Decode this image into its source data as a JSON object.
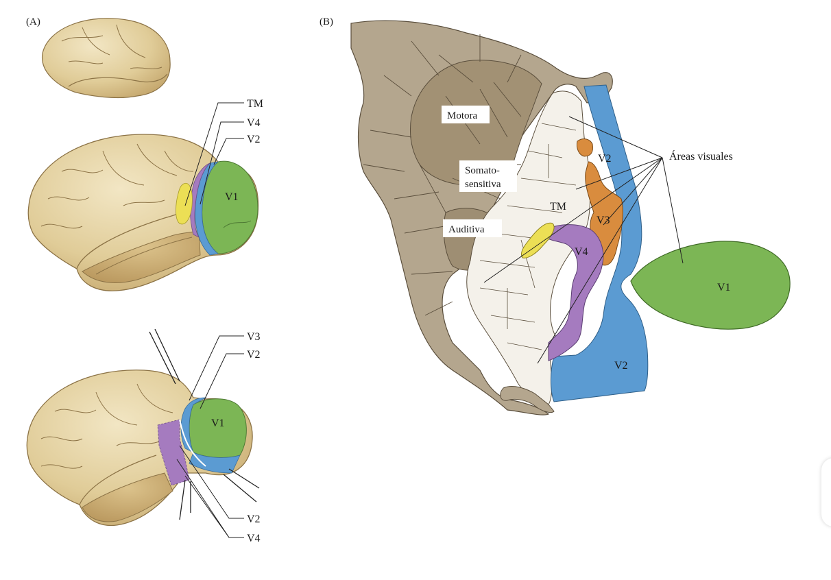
{
  "figure": {
    "panel_a_label": "(A)",
    "panel_b_label": "(B)"
  },
  "panel_a": {
    "lateral_labels": {
      "tm": "TM",
      "v4": "V4",
      "v2": "V2",
      "v1": "V1"
    },
    "posterior_labels": {
      "v3": "V3",
      "v2_top": "V2",
      "v1": "V1",
      "v2_bottom": "V2",
      "v4_bottom": "V4"
    }
  },
  "panel_b": {
    "motora": "Motora",
    "somato_line1": "Somato-",
    "somato_line2": "sensitiva",
    "auditiva": "Auditiva",
    "tm": "TM",
    "v2_top": "V2",
    "v3": "V3",
    "v4": "V4",
    "v2_bottom": "V2",
    "v1": "V1",
    "areas_visuales": "Áreas visuales"
  },
  "colors": {
    "brain": "#e6d5a8",
    "brain_shadow": "#c9ad72",
    "v1": "#7cb655",
    "v2": "#5b9bd2",
    "v3": "#d98c3e",
    "v4": "#a57bbf",
    "tm": "#ecdf55",
    "flat_gray": "#b4a68e",
    "flat_dark": "#9e8e73",
    "flat_light": "#f4f1ea"
  }
}
